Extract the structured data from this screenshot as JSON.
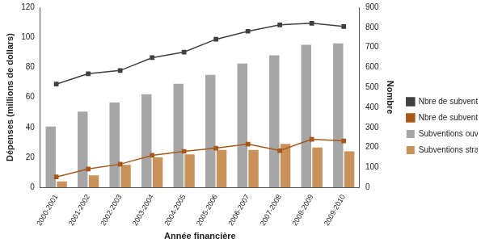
{
  "chart_data": {
    "type": "bar",
    "x_label": "Année financière",
    "y_label": "Dépenses (millions de dollars)",
    "y2_label": "Nombre",
    "categories": [
      "2000-2001",
      "2001-2002",
      "2002-2003",
      "2003-2004",
      "2004-2005",
      "2005-2006",
      "2006-2007",
      "2007-2008",
      "2008-2009",
      "2009-2010"
    ],
    "series": [
      {
        "name": "Subventions ouvertes ($)",
        "type": "bar",
        "color": "#a6a6a6",
        "values": [
          40.5,
          50.5,
          56.5,
          62,
          69,
          75,
          82.5,
          88,
          95,
          96
        ]
      },
      {
        "name": "Subventions stratégiques ($)",
        "type": "bar",
        "color": "#c9925a",
        "values": [
          4,
          8,
          15,
          20,
          22,
          25,
          25,
          29,
          26.5,
          24
        ]
      },
      {
        "name": "Nbre de subventions ouvertes",
        "type": "line",
        "axis": "y2",
        "color": "#404040",
        "marker": "square",
        "values": [
          516,
          568,
          584,
          648,
          676,
          740,
          780,
          812,
          820,
          804
        ]
      },
      {
        "name": "Nbre de subventions stratégiques",
        "type": "line",
        "axis": "y2",
        "color": "#a8581a",
        "marker": "square",
        "values": [
          52,
          92,
          116,
          160,
          180,
          196,
          216,
          184,
          240,
          232
        ]
      }
    ],
    "ylim": [
      0,
      120
    ],
    "yticks": [
      0,
      20,
      40,
      60,
      80,
      100,
      120
    ],
    "y2lim": [
      0,
      900
    ],
    "y2ticks": [
      0,
      100,
      200,
      300,
      400,
      500,
      600,
      700,
      800,
      900
    ],
    "grid": false,
    "legend": "right"
  }
}
